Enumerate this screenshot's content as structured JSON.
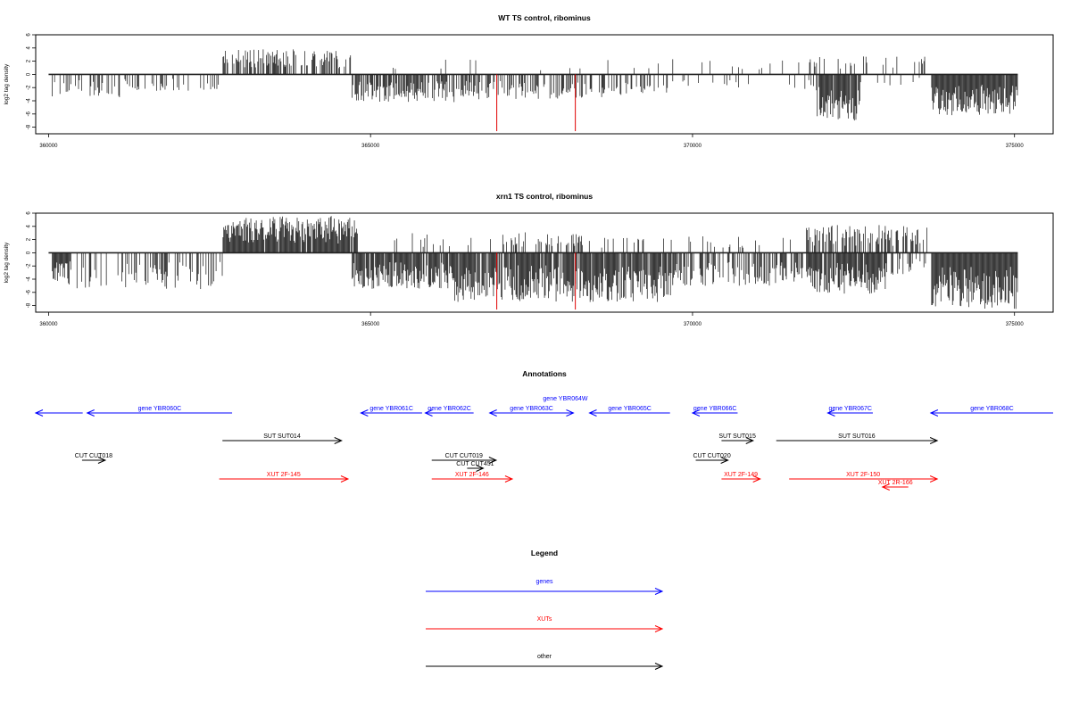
{
  "colors": {
    "axis": "#000000",
    "gene": "#0000ff",
    "xut": "#ff0000",
    "other": "#000000",
    "marker": "#e00000"
  },
  "chart_data": [
    {
      "type": "bar",
      "title": "WT TS control, ribominus",
      "ylabel": "log2 tag density",
      "xlim": [
        359800,
        375600
      ],
      "ylim": [
        -9,
        6
      ],
      "x_ticks": [
        360000,
        365000,
        370000,
        375000
      ],
      "y_ticks": [
        6,
        4,
        2,
        0,
        -2,
        -4,
        -6,
        -8
      ],
      "markers": [
        366960,
        368180
      ],
      "plus_regions": [
        [
          360050,
          360200,
          0.9,
          0.0
        ],
        [
          362700,
          364700,
          3.8,
          0.55
        ],
        [
          365300,
          371500,
          2.3,
          0.04
        ],
        [
          371600,
          373600,
          2.8,
          0.15
        ]
      ],
      "minus_regions": [
        [
          360050,
          361100,
          3.5,
          0.35
        ],
        [
          361100,
          362700,
          2.5,
          0.2
        ],
        [
          364700,
          366300,
          4.2,
          0.7
        ],
        [
          366300,
          368700,
          3.8,
          0.4
        ],
        [
          368700,
          369700,
          3.2,
          0.3
        ],
        [
          369700,
          371900,
          2.2,
          0.12
        ],
        [
          371900,
          372600,
          7.0,
          0.9
        ],
        [
          372600,
          373700,
          1.8,
          0.04
        ],
        [
          373700,
          375050,
          6.2,
          0.98
        ]
      ],
      "seed": 7
    },
    {
      "type": "bar",
      "title": "xrn1 TS control, ribominus",
      "ylabel": "log2 tag density",
      "xlim": [
        359800,
        375600
      ],
      "ylim": [
        -9,
        6
      ],
      "x_ticks": [
        360000,
        365000,
        370000,
        375000
      ],
      "y_ticks": [
        6,
        4,
        2,
        0,
        -2,
        -4,
        -6,
        -8
      ],
      "markers": [
        366960,
        368180
      ],
      "plus_regions": [
        [
          360000,
          360300,
          2.0,
          0.1
        ],
        [
          362700,
          364800,
          5.6,
          0.95
        ],
        [
          365300,
          366900,
          3.0,
          0.15
        ],
        [
          366900,
          368300,
          3.2,
          0.35
        ],
        [
          368300,
          371700,
          2.5,
          0.1
        ],
        [
          371700,
          373700,
          4.2,
          0.45
        ]
      ],
      "minus_regions": [
        [
          360050,
          360350,
          4.8,
          0.95
        ],
        [
          360350,
          362700,
          5.5,
          0.3
        ],
        [
          364700,
          366300,
          5.5,
          0.9
        ],
        [
          366300,
          369700,
          7.5,
          0.9
        ],
        [
          369700,
          371800,
          5.0,
          0.6
        ],
        [
          371800,
          373000,
          6.2,
          0.85
        ],
        [
          373000,
          373700,
          3.5,
          0.3
        ],
        [
          373700,
          375050,
          8.5,
          1.0
        ]
      ],
      "seed": 23
    }
  ],
  "annotations": {
    "title": "Annotations",
    "features": [
      {
        "label": "",
        "kind": "gene",
        "dir": "-",
        "start": 359800,
        "end": 360530,
        "row": 0
      },
      {
        "label": "gene YBR060C",
        "kind": "gene",
        "dir": "-",
        "start": 360600,
        "end": 362850,
        "row": 0
      },
      {
        "label": "gene YBR061C",
        "kind": "gene",
        "dir": "-",
        "start": 364850,
        "end": 365800,
        "row": 0
      },
      {
        "label": "gene YBR062C",
        "kind": "gene",
        "dir": "-",
        "start": 365850,
        "end": 366600,
        "row": 0
      },
      {
        "label": "gene YBR063C",
        "kind": "gene",
        "dir": "-",
        "start": 366850,
        "end": 368150,
        "row": 0
      },
      {
        "label": "gene YBR064W",
        "kind": "gene",
        "dir": "+",
        "start": 367900,
        "end": 368150,
        "row": 0,
        "label_dy": -11
      },
      {
        "label": "gene YBR065C",
        "kind": "gene",
        "dir": "-",
        "start": 368400,
        "end": 369650,
        "row": 0
      },
      {
        "label": "gene YBR066C",
        "kind": "gene",
        "dir": "-",
        "start": 370000,
        "end": 370700,
        "row": 0
      },
      {
        "label": "gene YBR067C",
        "kind": "gene",
        "dir": "-",
        "start": 372100,
        "end": 372800,
        "row": 0
      },
      {
        "label": "gene YBR068C",
        "kind": "gene",
        "dir": "-",
        "start": 373700,
        "end": 375600,
        "row": 0
      },
      {
        "label": "SUT SUT014",
        "kind": "other",
        "dir": "+",
        "start": 362700,
        "end": 364550,
        "row": 1
      },
      {
        "label": "SUT SUT015",
        "kind": "other",
        "dir": "+",
        "start": 370450,
        "end": 370940,
        "row": 1
      },
      {
        "label": "SUT SUT016",
        "kind": "other",
        "dir": "+",
        "start": 371300,
        "end": 373800,
        "row": 1
      },
      {
        "label": "CUT CUT018",
        "kind": "other",
        "dir": "+",
        "start": 360520,
        "end": 360880,
        "row": 2
      },
      {
        "label": "CUT CUT019",
        "kind": "other",
        "dir": "+",
        "start": 365950,
        "end": 366950,
        "row": 2
      },
      {
        "label": "CUT CUT451",
        "kind": "other",
        "dir": "+",
        "start": 366500,
        "end": 366750,
        "row": 2,
        "dy": 9
      },
      {
        "label": "CUT CUT020",
        "kind": "other",
        "dir": "+",
        "start": 370050,
        "end": 370550,
        "row": 2
      },
      {
        "label": "XUT 2F-145",
        "kind": "xut",
        "dir": "+",
        "start": 362650,
        "end": 364650,
        "row": 3
      },
      {
        "label": "XUT 2F-146",
        "kind": "xut",
        "dir": "+",
        "start": 365950,
        "end": 367200,
        "row": 3
      },
      {
        "label": "XUT 2F-149",
        "kind": "xut",
        "dir": "+",
        "start": 370450,
        "end": 371050,
        "row": 3
      },
      {
        "label": "XUT 2F-150",
        "kind": "xut",
        "dir": "+",
        "start": 371500,
        "end": 373800,
        "row": 3
      },
      {
        "label": "XUT 2R-166",
        "kind": "xut",
        "dir": "-",
        "start": 372950,
        "end": 373350,
        "row": 3,
        "dy": 9
      }
    ]
  },
  "legend": {
    "title": "Legend",
    "items": [
      {
        "label": "genes",
        "kind": "gene"
      },
      {
        "label": "XUTs",
        "kind": "xut"
      },
      {
        "label": "other",
        "kind": "other"
      }
    ]
  }
}
